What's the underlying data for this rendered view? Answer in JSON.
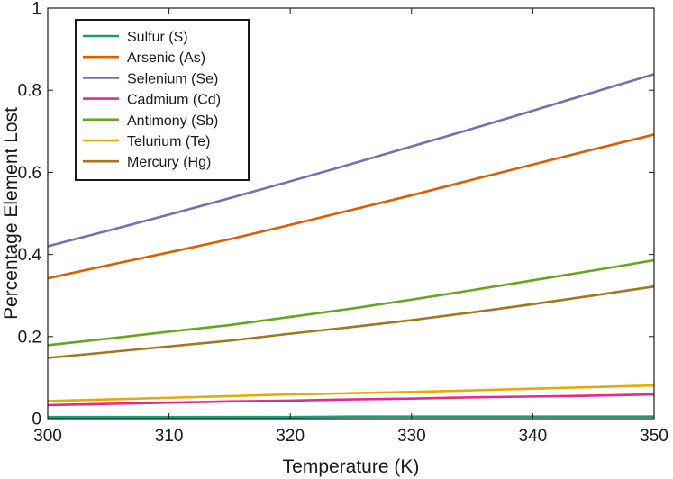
{
  "chart_data": {
    "type": "line",
    "title": "",
    "xlabel": "Temperature (K)",
    "ylabel": "Percentage Element Lost",
    "xlim": [
      300,
      350
    ],
    "ylim": [
      0,
      1
    ],
    "xticks": [
      300,
      310,
      320,
      330,
      340,
      350
    ],
    "yticks": [
      0,
      0.2,
      0.4,
      0.6,
      0.8,
      1
    ],
    "xtick_labels": [
      "300",
      "310",
      "320",
      "330",
      "340",
      "350"
    ],
    "ytick_labels": [
      "0",
      "0.2",
      "0.4",
      "0.6",
      "0.8",
      "1"
    ],
    "grid": false,
    "legend_position": "top-left",
    "x": [
      300,
      305,
      310,
      315,
      320,
      325,
      330,
      335,
      340,
      345,
      350
    ],
    "series": [
      {
        "name": "Sulfur (S)",
        "color": "#1b9e77",
        "values": [
          0.004,
          0.004,
          0.004,
          0.004,
          0.004,
          0.005,
          0.005,
          0.005,
          0.005,
          0.005,
          0.005
        ]
      },
      {
        "name": "Arsenic (As)",
        "color": "#d95f02",
        "values": [
          0.342,
          0.374,
          0.405,
          0.437,
          0.472,
          0.508,
          0.544,
          0.582,
          0.619,
          0.656,
          0.692
        ]
      },
      {
        "name": "Selenium (Se)",
        "color": "#7570b3",
        "values": [
          0.42,
          0.458,
          0.497,
          0.537,
          0.578,
          0.62,
          0.663,
          0.706,
          0.75,
          0.795,
          0.839
        ]
      },
      {
        "name": "Cadmium (Cd)",
        "color": "#e7298a",
        "values": [
          0.033,
          0.036,
          0.039,
          0.042,
          0.044,
          0.047,
          0.049,
          0.052,
          0.054,
          0.056,
          0.059
        ]
      },
      {
        "name": "Antimony (Sb)",
        "color": "#66a61e",
        "values": [
          0.179,
          0.195,
          0.212,
          0.228,
          0.248,
          0.268,
          0.29,
          0.313,
          0.337,
          0.361,
          0.386
        ]
      },
      {
        "name": "Telurium (Te)",
        "color": "#e6ab02",
        "values": [
          0.043,
          0.047,
          0.051,
          0.055,
          0.059,
          0.062,
          0.065,
          0.069,
          0.073,
          0.077,
          0.081
        ]
      },
      {
        "name": "Mercury (Hg)",
        "color": "#a6761d",
        "values": [
          0.148,
          0.162,
          0.176,
          0.19,
          0.207,
          0.223,
          0.24,
          0.259,
          0.279,
          0.3,
          0.322
        ]
      }
    ]
  }
}
